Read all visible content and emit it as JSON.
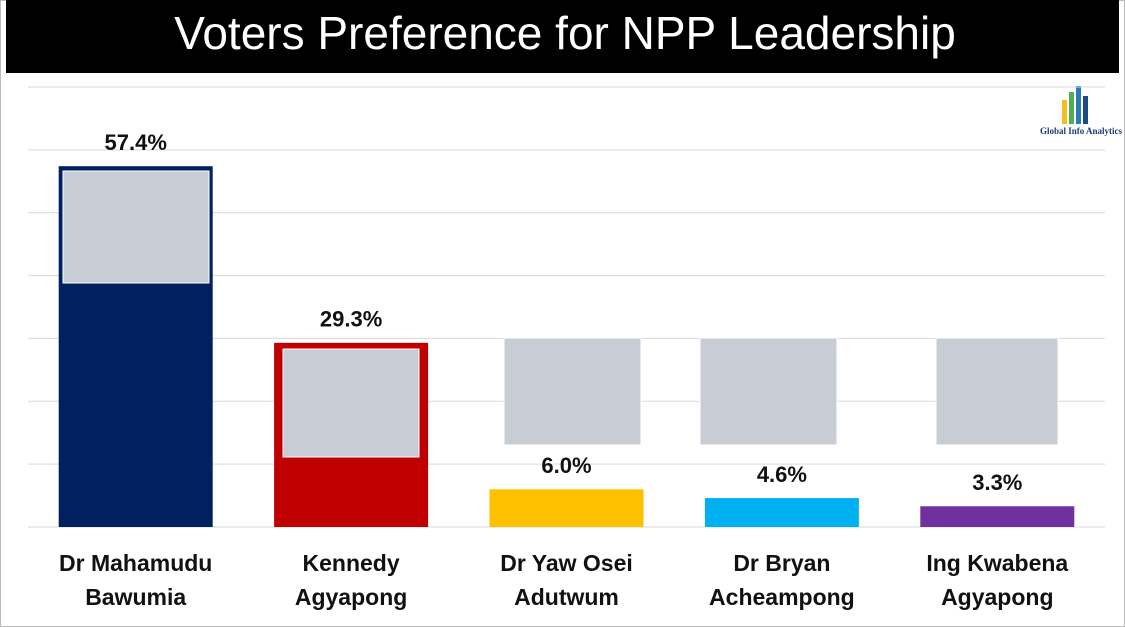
{
  "chart_data": {
    "type": "bar",
    "title": "Voters Preference for NPP Leadership",
    "source": "Global Info Analytics",
    "categories": [
      "Dr Mahamudu Bawumia",
      "Kennedy Agyapong",
      "Dr Yaw Osei Adutwum",
      "Dr Bryan Acheampong",
      "Ing Kwabena Agyapong"
    ],
    "values": [
      57.4,
      29.3,
      6.0,
      4.6,
      3.3
    ],
    "value_labels": [
      "57.4%",
      "29.3%",
      "6.0%",
      "4.6%",
      "3.3%"
    ],
    "colors": [
      "#002060",
      "#c00000",
      "#ffc000",
      "#00b0f0",
      "#7030a0"
    ],
    "ylim": [
      0,
      70
    ],
    "yticks": [
      0,
      10,
      20,
      30,
      40,
      50,
      60,
      70
    ],
    "grid": true
  }
}
